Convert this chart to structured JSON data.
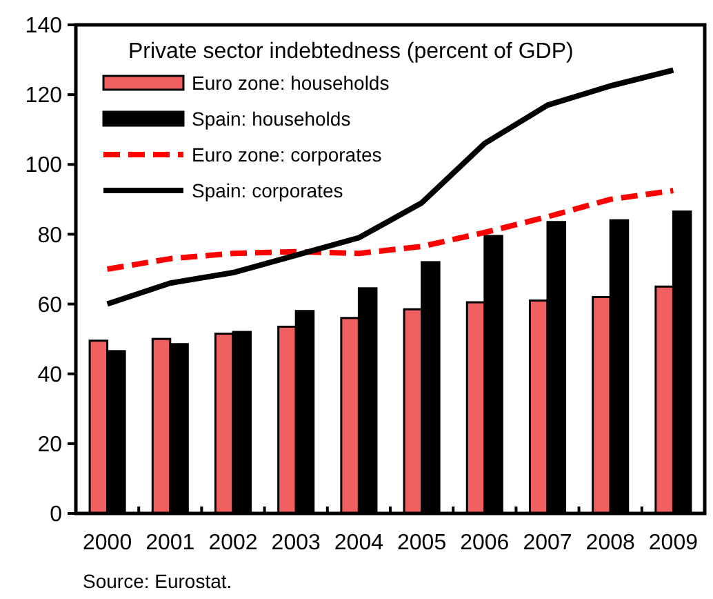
{
  "chart_data": {
    "type": "bar",
    "title": "Private sector indebtedness (percent of GDP)",
    "categories": [
      "2000",
      "2001",
      "2002",
      "2003",
      "2004",
      "2005",
      "2006",
      "2007",
      "2008",
      "2009"
    ],
    "series": [
      {
        "name": "Euro zone: households",
        "color": "#f06060",
        "values": [
          49.5,
          50,
          51.5,
          53.5,
          56,
          58.5,
          60.5,
          61,
          62,
          65
        ]
      },
      {
        "name": "Spain: households",
        "color": "#000000",
        "values": [
          46.5,
          48.5,
          52,
          58,
          64.5,
          72,
          79.5,
          83.5,
          84,
          86.5
        ]
      },
      {
        "name": "Euro zone: corporates",
        "type": "line",
        "color": "#ff0000",
        "line_style": "dashed",
        "values": [
          70,
          73,
          74.5,
          75,
          74.5,
          76.5,
          80.5,
          85,
          90,
          92.5
        ]
      },
      {
        "name": "Spain: corporates",
        "type": "line",
        "color": "#000000",
        "line_style": "solid",
        "values": [
          60,
          66,
          69,
          74,
          79,
          89,
          106,
          117,
          122.5,
          127
        ]
      }
    ],
    "ylim": [
      0,
      140
    ],
    "yticks": [
      0,
      20,
      40,
      60,
      80,
      100,
      120,
      140
    ],
    "grid": false,
    "legend": "top left",
    "annotations": [
      "Source: Eurostat."
    ]
  }
}
